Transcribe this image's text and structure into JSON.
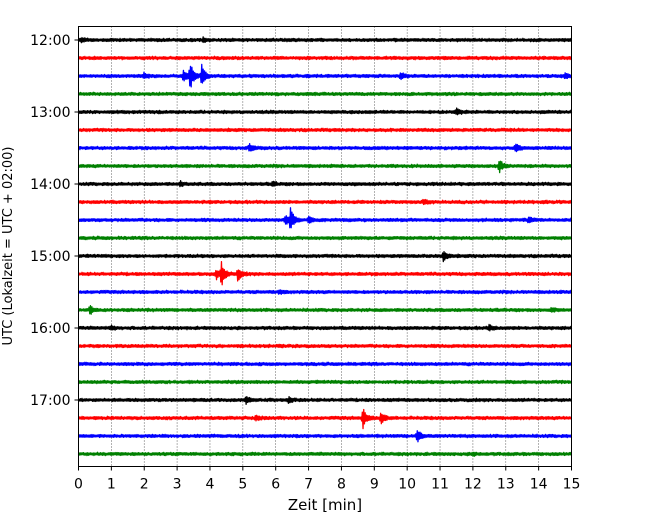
{
  "chart_data": {
    "type": "line",
    "title": "",
    "xlabel": "Zeit  [min]",
    "ylabel": "UTC (Lokalzeit = UTC + 02:00)",
    "xlim": [
      0,
      15
    ],
    "x_ticks": [
      "0",
      "1",
      "2",
      "3",
      "4",
      "5",
      "6",
      "7",
      "8",
      "9",
      "10",
      "11",
      "12",
      "13",
      "14",
      "15"
    ],
    "y_ticks": [
      "12:00",
      "13:00",
      "14:00",
      "15:00",
      "16:00",
      "17:00"
    ],
    "grid": "vertical dotted",
    "trace_interval_min": 15,
    "color_cycle": [
      "#000000",
      "#ff0000",
      "#0000ff",
      "#008000"
    ],
    "traces": [
      {
        "start": "12:00",
        "events": [
          {
            "t": 0.1,
            "amp": 0.2
          },
          {
            "t": 3.8,
            "amp": 0.25
          }
        ]
      },
      {
        "start": "12:15",
        "events": []
      },
      {
        "start": "12:30",
        "events": [
          {
            "t": 2.0,
            "amp": 0.3
          },
          {
            "t": 3.2,
            "amp": 0.7
          },
          {
            "t": 3.4,
            "amp": 1.4
          },
          {
            "t": 3.75,
            "amp": 1.2
          },
          {
            "t": 9.8,
            "amp": 0.35
          },
          {
            "t": 14.8,
            "amp": 0.25
          }
        ]
      },
      {
        "start": "12:45",
        "events": []
      },
      {
        "start": "13:00",
        "events": [
          {
            "t": 11.5,
            "amp": 0.35
          }
        ]
      },
      {
        "start": "13:15",
        "events": []
      },
      {
        "start": "13:30",
        "events": [
          {
            "t": 5.2,
            "amp": 0.45
          },
          {
            "t": 13.3,
            "amp": 0.4
          }
        ]
      },
      {
        "start": "13:45",
        "events": [
          {
            "t": 12.8,
            "amp": 0.7
          }
        ]
      },
      {
        "start": "14:00",
        "events": [
          {
            "t": 3.1,
            "amp": 0.25
          },
          {
            "t": 5.9,
            "amp": 0.2
          }
        ]
      },
      {
        "start": "14:15",
        "events": [
          {
            "t": 10.5,
            "amp": 0.3
          }
        ]
      },
      {
        "start": "14:30",
        "events": [
          {
            "t": 6.3,
            "amp": 0.5
          },
          {
            "t": 6.45,
            "amp": 1.2
          },
          {
            "t": 7.0,
            "amp": 0.4
          },
          {
            "t": 13.7,
            "amp": 0.3
          }
        ]
      },
      {
        "start": "14:45",
        "events": []
      },
      {
        "start": "15:00",
        "events": [
          {
            "t": 11.1,
            "amp": 0.55
          }
        ]
      },
      {
        "start": "15:15",
        "events": [
          {
            "t": 4.2,
            "amp": 0.5
          },
          {
            "t": 4.35,
            "amp": 1.2
          },
          {
            "t": 4.85,
            "amp": 0.7
          }
        ]
      },
      {
        "start": "15:30",
        "events": [
          {
            "t": 6.1,
            "amp": 0.2
          }
        ]
      },
      {
        "start": "15:45",
        "events": [
          {
            "t": 0.35,
            "amp": 0.45
          },
          {
            "t": 14.4,
            "amp": 0.2
          }
        ]
      },
      {
        "start": "16:00",
        "events": [
          {
            "t": 1.0,
            "amp": 0.2
          },
          {
            "t": 12.5,
            "amp": 0.3
          }
        ]
      },
      {
        "start": "16:15",
        "events": []
      },
      {
        "start": "16:30",
        "events": []
      },
      {
        "start": "16:45",
        "events": []
      },
      {
        "start": "17:00",
        "events": [
          {
            "t": 5.1,
            "amp": 0.3
          },
          {
            "t": 6.4,
            "amp": 0.25
          }
        ]
      },
      {
        "start": "17:15",
        "events": [
          {
            "t": 5.4,
            "amp": 0.3
          },
          {
            "t": 8.65,
            "amp": 1.1
          },
          {
            "t": 9.2,
            "amp": 0.7
          }
        ]
      },
      {
        "start": "17:30",
        "events": [
          {
            "t": 10.3,
            "amp": 0.7
          }
        ]
      },
      {
        "start": "17:45",
        "events": [
          {
            "t": 12.0,
            "amp": 0.15
          }
        ]
      }
    ]
  }
}
